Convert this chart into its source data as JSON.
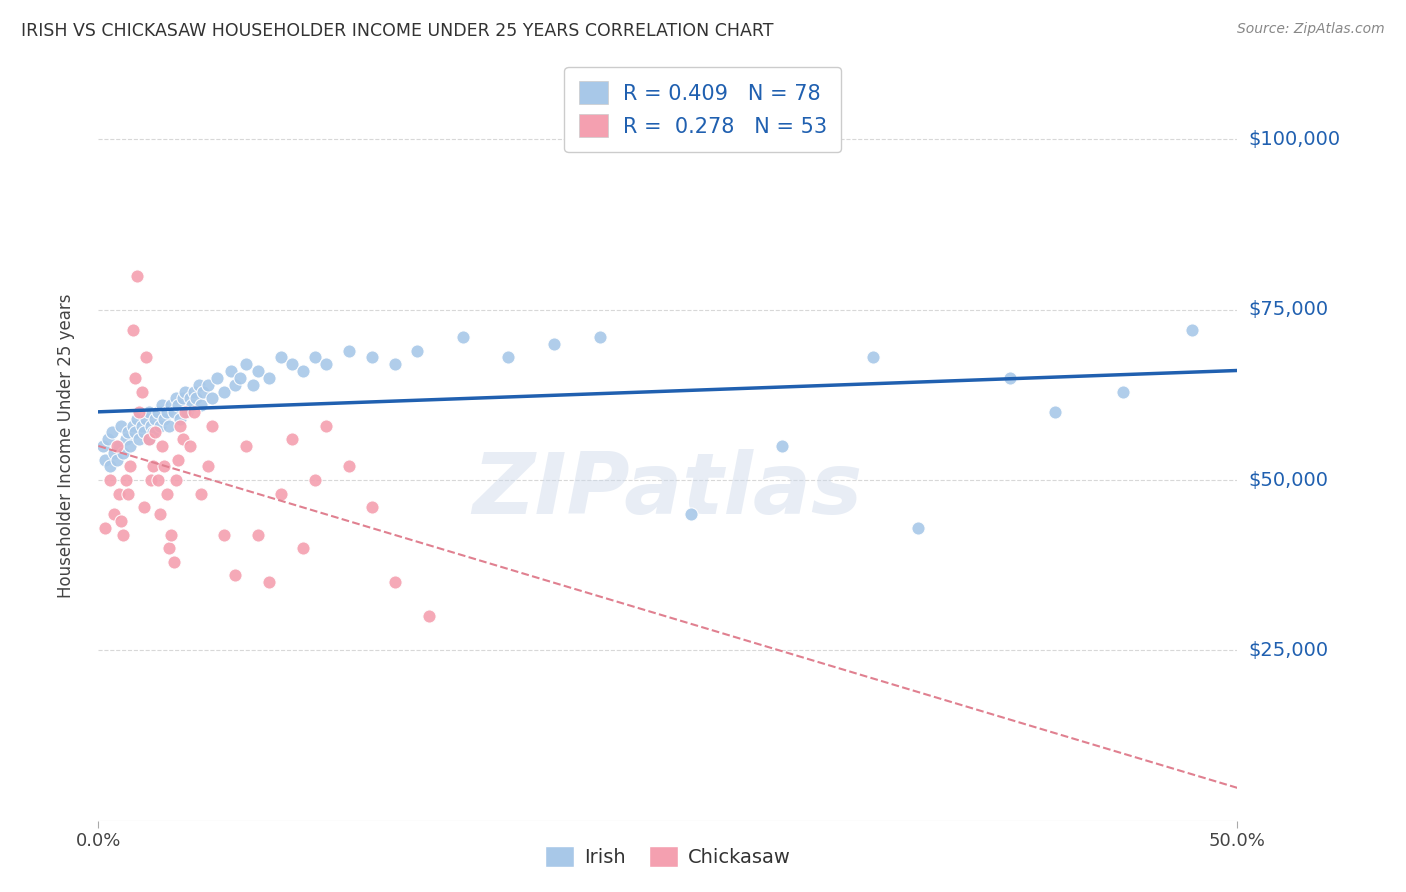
{
  "title": "IRISH VS CHICKASAW HOUSEHOLDER INCOME UNDER 25 YEARS CORRELATION CHART",
  "source": "Source: ZipAtlas.com",
  "ylabel": "Householder Income Under 25 years",
  "irish_color": "#a8c8e8",
  "chickasaw_color": "#f4a0b0",
  "irish_line_color": "#2060b0",
  "chickasaw_line_color": "#e08090",
  "irish_R": 0.409,
  "irish_N": 78,
  "chickasaw_R": 0.278,
  "chickasaw_N": 53,
  "xmin": 0.0,
  "xmax": 0.5,
  "ymin": 0,
  "ymax": 110000,
  "yticks": [
    25000,
    50000,
    75000,
    100000
  ],
  "ytick_labels": [
    "$25,000",
    "$50,000",
    "$75,000",
    "$100,000"
  ],
  "grid_color": "#d8d8d8",
  "background_color": "#ffffff",
  "watermark_text": "ZIPatlas",
  "irish_x": [
    0.002,
    0.003,
    0.004,
    0.005,
    0.006,
    0.007,
    0.008,
    0.009,
    0.01,
    0.011,
    0.012,
    0.013,
    0.014,
    0.015,
    0.016,
    0.017,
    0.018,
    0.019,
    0.02,
    0.021,
    0.022,
    0.022,
    0.023,
    0.024,
    0.025,
    0.026,
    0.027,
    0.028,
    0.029,
    0.03,
    0.031,
    0.032,
    0.033,
    0.034,
    0.035,
    0.036,
    0.037,
    0.038,
    0.039,
    0.04,
    0.041,
    0.042,
    0.043,
    0.044,
    0.045,
    0.046,
    0.048,
    0.05,
    0.052,
    0.055,
    0.058,
    0.06,
    0.062,
    0.065,
    0.068,
    0.07,
    0.075,
    0.08,
    0.085,
    0.09,
    0.095,
    0.1,
    0.11,
    0.12,
    0.13,
    0.14,
    0.16,
    0.18,
    0.2,
    0.22,
    0.26,
    0.3,
    0.34,
    0.36,
    0.4,
    0.42,
    0.45,
    0.48
  ],
  "irish_y": [
    55000,
    53000,
    56000,
    52000,
    57000,
    54000,
    53000,
    55000,
    58000,
    54000,
    56000,
    57000,
    55000,
    58000,
    57000,
    59000,
    56000,
    58000,
    57000,
    59000,
    56000,
    60000,
    58000,
    57000,
    59000,
    60000,
    58000,
    61000,
    59000,
    60000,
    58000,
    61000,
    60000,
    62000,
    61000,
    59000,
    62000,
    63000,
    60000,
    62000,
    61000,
    63000,
    62000,
    64000,
    61000,
    63000,
    64000,
    62000,
    65000,
    63000,
    66000,
    64000,
    65000,
    67000,
    64000,
    66000,
    65000,
    68000,
    67000,
    66000,
    68000,
    67000,
    69000,
    68000,
    67000,
    69000,
    71000,
    68000,
    70000,
    71000,
    45000,
    55000,
    68000,
    43000,
    65000,
    60000,
    63000,
    72000
  ],
  "chickasaw_x": [
    0.003,
    0.005,
    0.007,
    0.008,
    0.009,
    0.01,
    0.011,
    0.012,
    0.013,
    0.014,
    0.015,
    0.016,
    0.017,
    0.018,
    0.019,
    0.02,
    0.021,
    0.022,
    0.023,
    0.024,
    0.025,
    0.026,
    0.027,
    0.028,
    0.029,
    0.03,
    0.031,
    0.032,
    0.033,
    0.034,
    0.035,
    0.036,
    0.037,
    0.038,
    0.04,
    0.042,
    0.045,
    0.048,
    0.05,
    0.055,
    0.06,
    0.065,
    0.07,
    0.075,
    0.08,
    0.085,
    0.09,
    0.095,
    0.1,
    0.11,
    0.12,
    0.13,
    0.145
  ],
  "chickasaw_y": [
    43000,
    50000,
    45000,
    55000,
    48000,
    44000,
    42000,
    50000,
    48000,
    52000,
    72000,
    65000,
    80000,
    60000,
    63000,
    46000,
    68000,
    56000,
    50000,
    52000,
    57000,
    50000,
    45000,
    55000,
    52000,
    48000,
    40000,
    42000,
    38000,
    50000,
    53000,
    58000,
    56000,
    60000,
    55000,
    60000,
    48000,
    52000,
    58000,
    42000,
    36000,
    55000,
    42000,
    35000,
    48000,
    56000,
    40000,
    50000,
    58000,
    52000,
    46000,
    35000,
    30000
  ]
}
